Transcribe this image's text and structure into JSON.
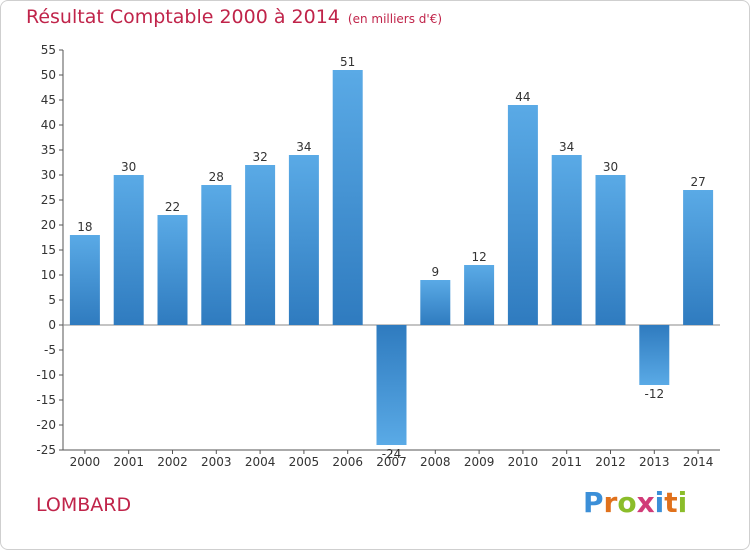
{
  "header": {
    "title": "Résultat Comptable 2000 à 2014",
    "subtitle": "(en milliers d'€)"
  },
  "footer": {
    "city": "LOMBARD",
    "logo_letters": [
      "P",
      "r",
      "o",
      "x",
      "i",
      "t",
      "i"
    ],
    "logo_colors": [
      "#3b8fd8",
      "#e0711c",
      "#8bbd2a",
      "#d13b78",
      "#3b8fd8",
      "#e0711c",
      "#8bbd2a"
    ]
  },
  "colors": {
    "bar_light": "#5aaae6",
    "bar_dark": "#2f7bbf",
    "text_accent": "#c0244a"
  },
  "chart_data": {
    "type": "bar",
    "title": "Résultat Comptable 2000 à 2014",
    "categories": [
      "2000",
      "2001",
      "2002",
      "2003",
      "2004",
      "2005",
      "2006",
      "2007",
      "2008",
      "2009",
      "2010",
      "2011",
      "2012",
      "2013",
      "2014"
    ],
    "values": [
      18,
      30,
      22,
      28,
      32,
      34,
      51,
      -24,
      9,
      12,
      44,
      34,
      30,
      -12,
      27
    ],
    "data_labels": [
      "18",
      "30",
      "22",
      "28",
      "32",
      "34",
      "51",
      "-24",
      "9",
      "12",
      "44",
      "34",
      "30",
      "-12",
      "27"
    ],
    "yticks": [
      55,
      50,
      45,
      40,
      35,
      30,
      25,
      20,
      15,
      10,
      5,
      0,
      -5,
      -10,
      -15,
      -20,
      -25
    ],
    "ylim": [
      -25,
      55
    ],
    "grid": false,
    "legend": "none"
  }
}
